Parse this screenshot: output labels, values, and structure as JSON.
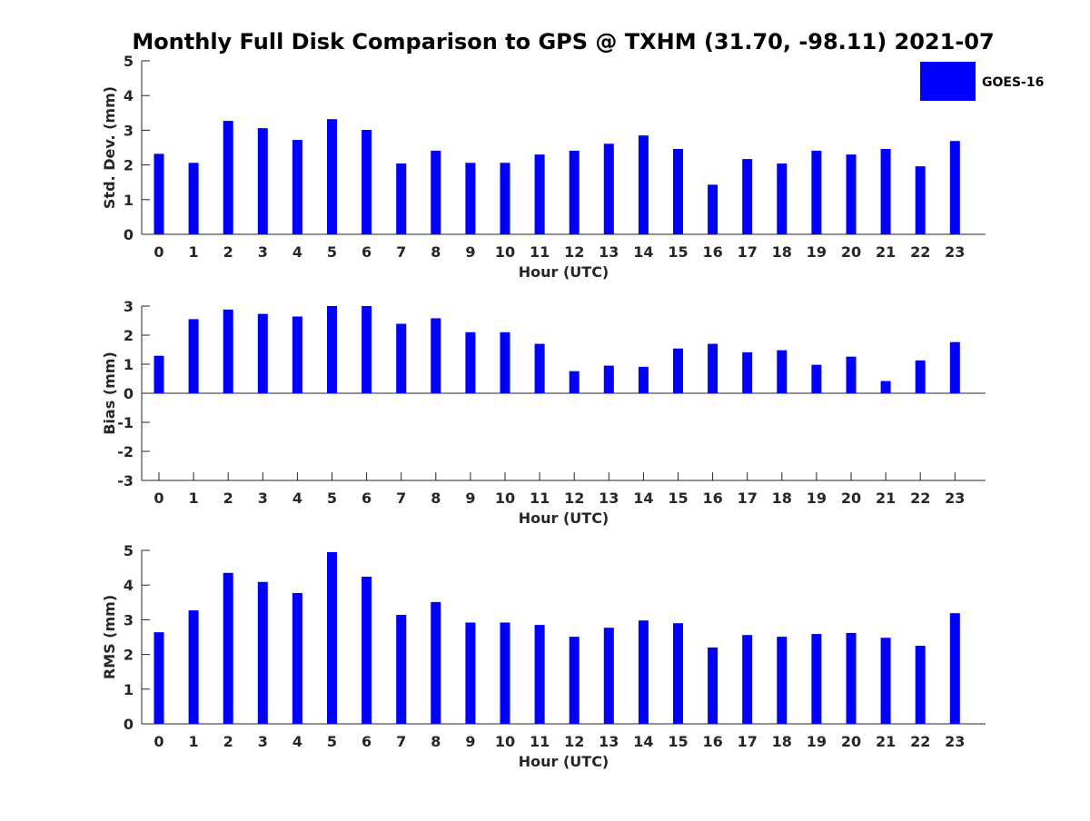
{
  "chart_data": {
    "title": "Monthly Full Disk Comparison to GPS @ TXHM (31.70, -98.11) 2021-07",
    "legend": {
      "label": "GOES-16",
      "placement": "top-right",
      "color": "#0000ff"
    },
    "bar_color": "#0000ff",
    "hours": [
      "0",
      "1",
      "2",
      "3",
      "4",
      "5",
      "6",
      "7",
      "8",
      "9",
      "10",
      "11",
      "12",
      "13",
      "14",
      "15",
      "16",
      "17",
      "18",
      "19",
      "20",
      "21",
      "22",
      "23"
    ],
    "panels": [
      {
        "type": "bar",
        "name": "std-dev",
        "ylabel": "Std. Dev. (mm)",
        "xlabel": "Hour (UTC)",
        "ylim": [
          0,
          5
        ],
        "yticks": [
          "0",
          "1",
          "2",
          "3",
          "4",
          "5"
        ],
        "values": [
          2.32,
          2.06,
          3.27,
          3.06,
          2.72,
          3.32,
          3.01,
          2.04,
          2.41,
          2.06,
          2.06,
          2.3,
          2.41,
          2.61,
          2.85,
          2.46,
          1.43,
          2.17,
          2.04,
          2.41,
          2.3,
          2.46,
          1.96,
          2.69
        ]
      },
      {
        "type": "bar",
        "name": "bias",
        "ylabel": "Bias (mm)",
        "xlabel": "Hour (UTC)",
        "ylim": [
          -3,
          3
        ],
        "yticks": [
          "-3",
          "-2",
          "-1",
          "0",
          "1",
          "2",
          "3"
        ],
        "values": [
          1.29,
          2.55,
          2.88,
          2.73,
          2.64,
          3.0,
          3.0,
          2.39,
          2.58,
          2.1,
          2.1,
          1.7,
          0.76,
          0.95,
          0.91,
          1.54,
          1.7,
          1.41,
          1.48,
          0.98,
          1.26,
          0.42,
          1.13,
          1.76
        ]
      },
      {
        "type": "bar",
        "name": "rms",
        "ylabel": "RMS (mm)",
        "xlabel": "Hour (UTC)",
        "ylim": [
          0,
          5
        ],
        "yticks": [
          "0",
          "1",
          "2",
          "3",
          "4",
          "5"
        ],
        "values": [
          2.64,
          3.27,
          4.35,
          4.09,
          3.77,
          4.95,
          4.24,
          3.14,
          3.51,
          2.92,
          2.92,
          2.85,
          2.51,
          2.77,
          2.98,
          2.9,
          2.2,
          2.56,
          2.51,
          2.59,
          2.62,
          2.48,
          2.25,
          3.19
        ]
      }
    ]
  }
}
